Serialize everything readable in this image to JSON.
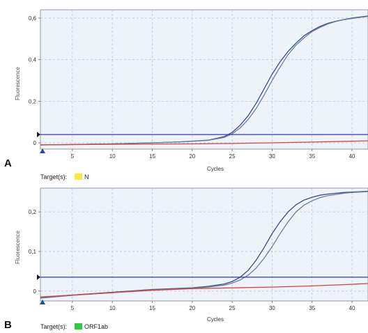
{
  "chart_data": [
    {
      "panel": "A",
      "type": "line",
      "xlabel": "Cycles",
      "ylabel": "Fluorescence",
      "xlim": [
        1,
        42
      ],
      "ylim": [
        -0.03,
        0.64
      ],
      "x_ticks": [
        "5",
        "10",
        "15",
        "20",
        "25",
        "30",
        "35",
        "40"
      ],
      "x_tick_values": [
        5,
        10,
        15,
        20,
        25,
        30,
        35,
        40
      ],
      "y_ticks": [
        "0",
        "0,2",
        "0,4",
        "0,6"
      ],
      "y_tick_values": [
        0,
        0.2,
        0.4,
        0.6
      ],
      "threshold": 0.04,
      "target_label": "Target(s):",
      "target_name": "N",
      "target_color": "#f5e942",
      "series": [
        {
          "color": "#3b4d7a",
          "x": [
            1,
            5,
            10,
            15,
            18,
            20,
            22,
            24,
            25,
            26,
            27,
            28,
            29,
            30,
            31,
            32,
            33,
            34,
            35,
            36,
            37,
            38,
            39,
            40,
            41,
            42
          ],
          "values": [
            -0.01,
            -0.008,
            -0.005,
            0.0,
            0.004,
            0.008,
            0.013,
            0.03,
            0.05,
            0.085,
            0.13,
            0.19,
            0.26,
            0.33,
            0.39,
            0.44,
            0.48,
            0.515,
            0.54,
            0.56,
            0.575,
            0.585,
            0.593,
            0.6,
            0.605,
            0.61
          ]
        },
        {
          "color": "#6a7ea0",
          "x": [
            1,
            5,
            10,
            15,
            18,
            20,
            22,
            24,
            25,
            26,
            27,
            28,
            29,
            30,
            31,
            32,
            33,
            34,
            35,
            36,
            37,
            38,
            39,
            40,
            41,
            42
          ],
          "values": [
            -0.01,
            -0.008,
            -0.005,
            0.0,
            0.004,
            0.008,
            0.012,
            0.026,
            0.043,
            0.072,
            0.112,
            0.165,
            0.23,
            0.3,
            0.365,
            0.425,
            0.47,
            0.505,
            0.535,
            0.555,
            0.572,
            0.584,
            0.592,
            0.598,
            0.603,
            0.608
          ]
        },
        {
          "color": "#d9433b",
          "x": [
            1,
            10,
            20,
            25,
            30,
            35,
            40,
            42
          ],
          "values": [
            -0.01,
            -0.007,
            -0.005,
            -0.003,
            0.0,
            0.004,
            0.008,
            0.01
          ]
        }
      ]
    },
    {
      "panel": "B",
      "type": "line",
      "xlabel": "Cycles",
      "ylabel": "Fluorescence",
      "xlim": [
        1,
        42
      ],
      "ylim": [
        -0.025,
        0.26
      ],
      "x_ticks": [
        "5",
        "10",
        "15",
        "20",
        "25",
        "30",
        "35",
        "40"
      ],
      "x_tick_values": [
        5,
        10,
        15,
        20,
        25,
        30,
        35,
        40
      ],
      "y_ticks": [
        "0",
        "0,1",
        "0,2"
      ],
      "y_tick_values": [
        0,
        0.1,
        0.2
      ],
      "threshold": 0.035,
      "target_label": "Target(s):",
      "target_name": "ORF1ab",
      "target_color": "#2ecc40",
      "series": [
        {
          "color": "#3b4d7a",
          "x": [
            1,
            5,
            10,
            15,
            20,
            22,
            24,
            25,
            26,
            27,
            28,
            29,
            30,
            31,
            32,
            33,
            34,
            35,
            36,
            37,
            38,
            39,
            40,
            41,
            42
          ],
          "values": [
            -0.016,
            -0.01,
            -0.003,
            0.004,
            0.008,
            0.012,
            0.018,
            0.024,
            0.035,
            0.052,
            0.078,
            0.11,
            0.145,
            0.175,
            0.2,
            0.218,
            0.23,
            0.237,
            0.242,
            0.245,
            0.247,
            0.249,
            0.25,
            0.251,
            0.252
          ]
        },
        {
          "color": "#6a7ea0",
          "x": [
            1,
            5,
            10,
            15,
            20,
            22,
            24,
            25,
            26,
            27,
            28,
            29,
            30,
            31,
            32,
            33,
            34,
            35,
            36,
            37,
            38,
            39,
            40,
            41,
            42
          ],
          "values": [
            -0.018,
            -0.011,
            -0.004,
            0.003,
            0.007,
            0.01,
            0.015,
            0.02,
            0.028,
            0.04,
            0.058,
            0.083,
            0.112,
            0.145,
            0.175,
            0.2,
            0.217,
            0.228,
            0.236,
            0.241,
            0.244,
            0.247,
            0.249,
            0.25,
            0.251
          ]
        },
        {
          "color": "#d9433b",
          "x": [
            1,
            5,
            10,
            15,
            20,
            25,
            30,
            35,
            40,
            42
          ],
          "values": [
            -0.015,
            -0.01,
            -0.004,
            0.002,
            0.006,
            0.008,
            0.01,
            0.013,
            0.017,
            0.019
          ]
        }
      ]
    }
  ]
}
